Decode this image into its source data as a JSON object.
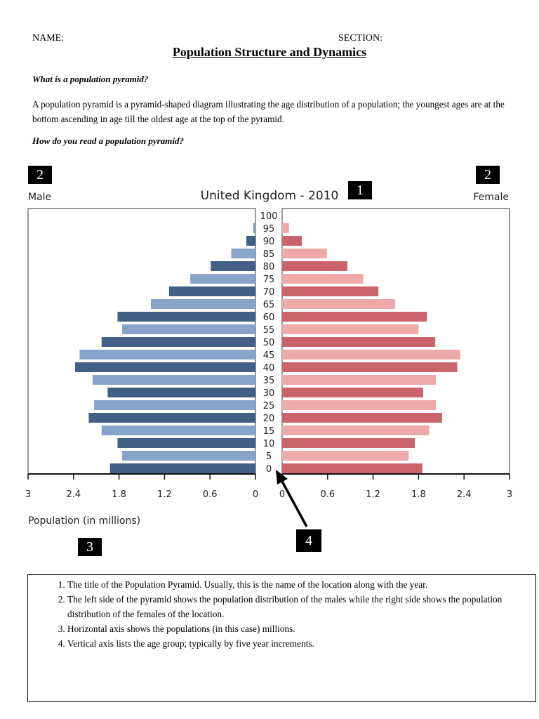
{
  "header": {
    "name_label": "NAME:",
    "section_label": "SECTION:",
    "title": "Population Structure and Dynamics"
  },
  "intro": {
    "question1": "What is a population pyramid?",
    "answer1": "A population pyramid is a pyramid-shaped diagram illustrating the age distribution of a population; the youngest ages are at the bottom ascending in age till the oldest age at the top of the pyramid.",
    "question2": "How do you read a population pyramid?"
  },
  "markers": {
    "m1": "1",
    "m2_left": "2",
    "m2_right": "2",
    "m3": "3",
    "m4": "4"
  },
  "chart_data": {
    "type": "bar",
    "title": "United Kingdom - 2010",
    "left_label": "Male",
    "right_label": "Female",
    "xlabel": "Population (in millions)",
    "xlim": [
      0,
      3
    ],
    "x_ticks_left": [
      "3",
      "2.4",
      "1.8",
      "1.2",
      "0.6",
      "0"
    ],
    "x_ticks_right": [
      "0",
      "0.6",
      "1.2",
      "1.8",
      "2.4",
      "3"
    ],
    "categories": [
      "0",
      "5",
      "10",
      "15",
      "20",
      "25",
      "30",
      "35",
      "40",
      "45",
      "50",
      "55",
      "60",
      "65",
      "70",
      "75",
      "80",
      "85",
      "90",
      "95",
      "100"
    ],
    "series": [
      {
        "name": "Male",
        "values": [
          1.92,
          1.76,
          1.82,
          2.03,
          2.2,
          2.13,
          1.95,
          2.15,
          2.38,
          2.32,
          2.03,
          1.76,
          1.82,
          1.38,
          1.14,
          0.86,
          0.59,
          0.32,
          0.12,
          0.03,
          0.0
        ],
        "colors": [
          "#425f86",
          "#87a5cb"
        ]
      },
      {
        "name": "Female",
        "values": [
          1.85,
          1.67,
          1.75,
          1.94,
          2.11,
          2.03,
          1.86,
          2.03,
          2.31,
          2.35,
          2.02,
          1.8,
          1.91,
          1.49,
          1.27,
          1.07,
          0.86,
          0.59,
          0.26,
          0.09,
          0.0
        ],
        "colors": [
          "#c9646b",
          "#eeaaaa"
        ]
      }
    ]
  },
  "legend_items": [
    "The title of the Population Pyramid. Usually, this is the name of the location along with the year.",
    "The left side of the pyramid shows the population distribution of the males while the right side shows the population distribution of the females of the location.",
    "Horizontal axis shows the populations (in this case) millions.",
    "Vertical axis lists the age group; typically by five year increments."
  ]
}
